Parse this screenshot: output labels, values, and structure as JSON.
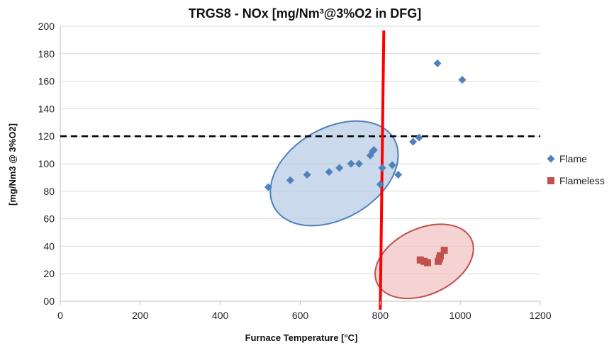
{
  "chart_data": {
    "type": "scatter",
    "title": "TRGS8 - NOx [mg/Nm³@3%O2 in DFG]",
    "xlabel": "Furnace Temperature [°C]",
    "ylabel": "[mg/Nm3 @ 3%O2]",
    "xlim": [
      0,
      1200
    ],
    "ylim": [
      0,
      200
    ],
    "xticks": [
      "0",
      "200",
      "400",
      "600",
      "800",
      "1000",
      "1200"
    ],
    "yticks": [
      "00",
      "20",
      "40",
      "60",
      "80",
      "100",
      "120",
      "140",
      "160",
      "180",
      "200"
    ],
    "grid": "horizontal",
    "legend_position": "right",
    "series": [
      {
        "name": "Flame",
        "marker": "diamond",
        "color": "#4f81bd",
        "points": [
          [
            520,
            83
          ],
          [
            575,
            88
          ],
          [
            617,
            92
          ],
          [
            672,
            94
          ],
          [
            698,
            97
          ],
          [
            727,
            100
          ],
          [
            747,
            100
          ],
          [
            775,
            106
          ],
          [
            781,
            109
          ],
          [
            784,
            110
          ],
          [
            800,
            85
          ],
          [
            805,
            97
          ],
          [
            830,
            99
          ],
          [
            845,
            92
          ],
          [
            882,
            116
          ],
          [
            897,
            119
          ],
          [
            943,
            173
          ],
          [
            1005,
            161
          ]
        ]
      },
      {
        "name": "Flameless",
        "marker": "square",
        "color": "#c0504d",
        "points": [
          [
            900,
            30
          ],
          [
            910,
            29
          ],
          [
            918,
            28
          ],
          [
            945,
            29
          ],
          [
            948,
            31
          ],
          [
            950,
            33
          ],
          [
            960,
            37
          ]
        ]
      }
    ],
    "reference_lines": [
      {
        "orientation": "horizontal",
        "value": 120,
        "style": "dashed",
        "color": "#000000"
      },
      {
        "orientation": "vertical",
        "value": 800,
        "style": "solid",
        "color": "#ff0000"
      }
    ],
    "ellipses": [
      {
        "cx": 685,
        "cy": 93,
        "rx": 345,
        "ry": 33,
        "angle": 30,
        "fill": "#b8cce4",
        "stroke": "#4f81bd"
      },
      {
        "cx": 910,
        "cy": 29,
        "rx": 260,
        "ry": 24,
        "angle": 25,
        "fill": "#f2c4c3",
        "stroke": "#c0504d"
      }
    ]
  }
}
